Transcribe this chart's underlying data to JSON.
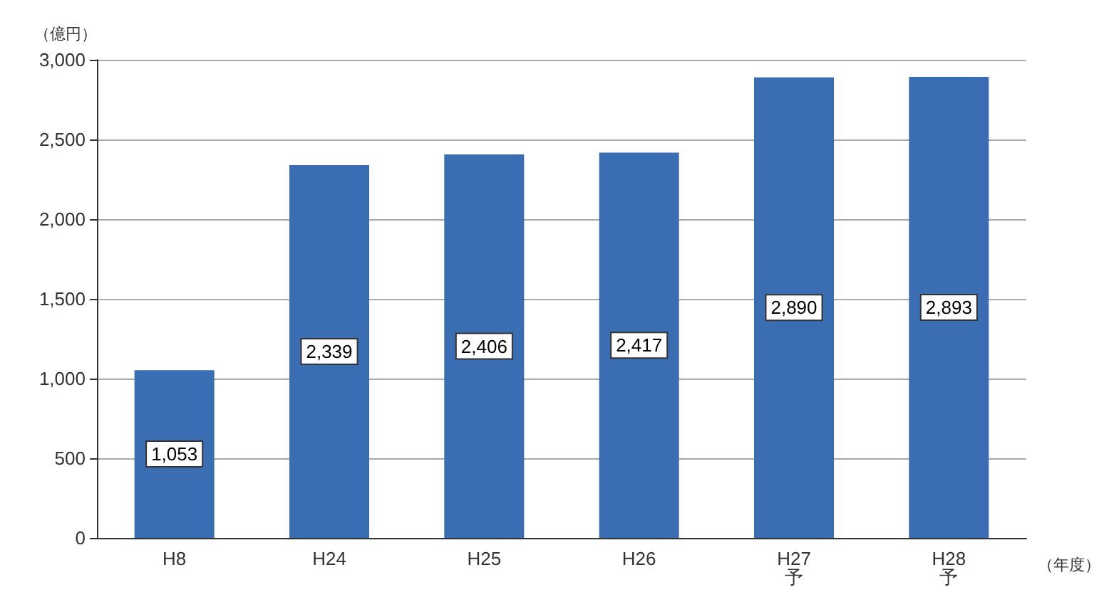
{
  "chart_data": {
    "type": "bar",
    "ylabel": "（億円）",
    "xlabel": "（年度）",
    "categories": [
      "H8",
      "H24",
      "H25",
      "H26",
      "H27\n予",
      "H28\n予"
    ],
    "values": [
      1053,
      2339,
      2406,
      2417,
      2890,
      2893
    ],
    "value_labels": [
      "1,053",
      "2,339",
      "2,406",
      "2,417",
      "2,890",
      "2,893"
    ],
    "color": "#3b6db3",
    "ylim": [
      0,
      3000
    ],
    "yticks": [
      {
        "value": 0,
        "label": "0"
      },
      {
        "value": 500,
        "label": "500"
      },
      {
        "value": 1000,
        "label": "1,000"
      },
      {
        "value": 1500,
        "label": "1,500"
      },
      {
        "value": 2000,
        "label": "2,000"
      },
      {
        "value": 2500,
        "label": "2,500"
      },
      {
        "value": 3000,
        "label": "3,000"
      }
    ],
    "grid": "y"
  }
}
